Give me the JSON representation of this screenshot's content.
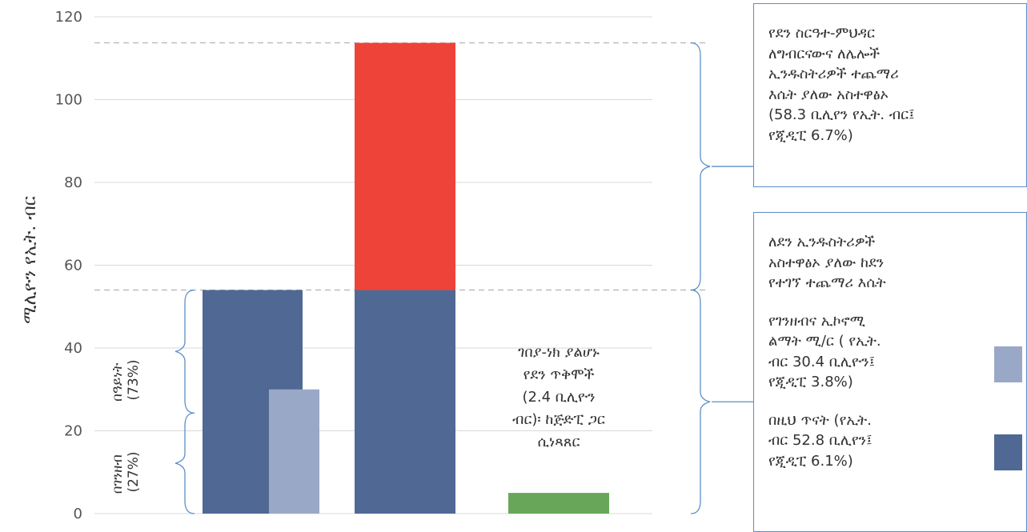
{
  "colors": {
    "dark_blue": "#4f6994",
    "light_blue": "#9aa8c8",
    "red": "#ee4339",
    "green": "#68a759",
    "grid": "#d9d9d9",
    "bracket": "#5b8ec9"
  },
  "chart_data": {
    "type": "bar",
    "ylabel": "ሚሊዮን የኢት. ብር",
    "ylim": [
      0,
      120
    ],
    "yticks": [
      0,
      20,
      40,
      60,
      80,
      100,
      120
    ],
    "grid": true,
    "reference_lines": [
      54.0,
      113.7
    ],
    "bars": [
      {
        "slot": 1,
        "pos": "left",
        "name": "በዚህ ጥናት (የኢት. ብር 52.8 ቢሊየን፤ የጂዲፒ 6.1%)",
        "value": 54.0,
        "color": "#4f6994"
      },
      {
        "slot": 1,
        "pos": "right",
        "name": "የገንዘብና ኢኮኖሚ ልማት ሚ/ር ( የኢት. ብር 30.4 ቢሊዮን፤ የጂዲፒ 3.8%)",
        "value": 30.0,
        "color": "#9aa8c8"
      },
      {
        "slot": 2,
        "pos": "full",
        "name": "በዚህ ጥናት (የኢት. ብር 52.8 ቢሊየን፤ የጂዲፒ 6.1%)",
        "value": 54.0,
        "color": "#4f6994"
      },
      {
        "slot": 2,
        "pos": "full-stack",
        "base": 54.0,
        "name": "የደን ስርዓተ-ምህዳር ለግብርናውና ለሌሎች ኢንዱስትሪዎች ተጨማሪ እሴት ያለው አስተዋፅኦ (58.3 ቢሊየን የኢት. ብር፤ የጂዲፒ 6.7%)",
        "value": 59.7,
        "color": "#ee4339"
      },
      {
        "slot": 3,
        "pos": "full",
        "name": "ገበያ-ነክ ያልሆኑ የደን ጥቅሞች (2.4 ቢሊዮን ብር)፡ ከጅድፒ ጋር ሲነጻጸር",
        "value": 5.0,
        "color": "#68a759"
      }
    ],
    "annotations": {
      "cash": "በገንዘብ\n(27%)",
      "inkind": "በዓይነት\n(73%)",
      "nonmarket_note": "ገበያ-ነክ ያልሆኑ\nየደን ጥቅሞች\n(2.4 ቢሊዮን\nብር)፡ ከጅድፒ ጋር\nሲነጻጸር"
    }
  },
  "boxes": {
    "top_text": "የደን ስርዓተ-ምህዳር\nለግብርናውና ለሌሎች\nኢንዱስትሪዎች ተጨማሪ\nእሴት ያለው አስተዋፅኦ\n(58.3 ቢሊየን የኢት. ብር፤\nየጂዲፒ 6.7%)",
    "bottom_intro": "ለደን ኢንዱስትሪዎች\nአስተዋፅኦ ያለው ከደን\nየተገኘ ተጨማሪ እሴት",
    "legend_ministry": "የገንዘብና ኢኮኖሚ\nልማት ሚ/ር ( የኢት.\nብር 30.4 ቢሊዮን፤\nየጂዲፒ 3.8%)",
    "legend_study": "በዚህ ጥናት (የኢት.\nብር 52.8 ቢሊየን፤\nየጂዲፒ 6.1%)"
  }
}
